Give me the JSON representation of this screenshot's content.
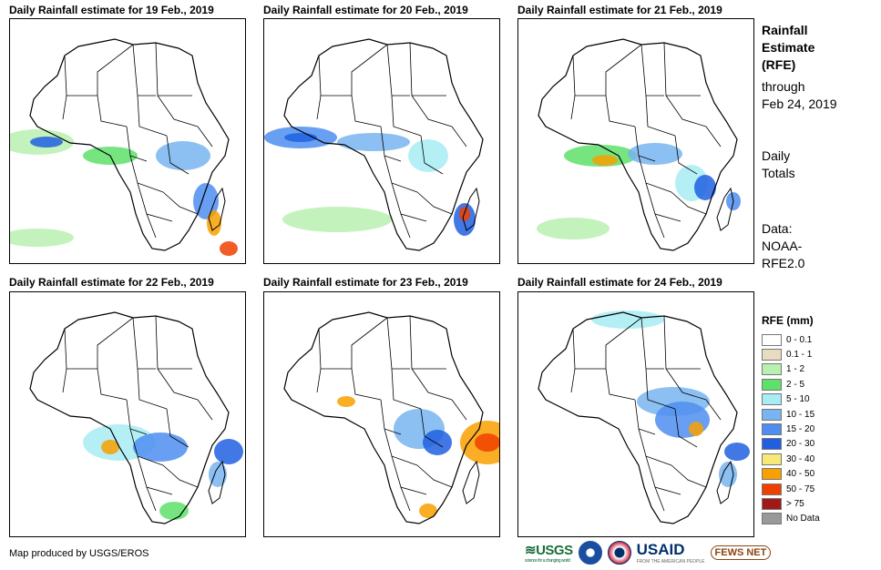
{
  "panels": [
    {
      "title": "Daily Rainfall estimate for 19 Feb., 2019"
    },
    {
      "title": "Daily Rainfall estimate for 20 Feb., 2019"
    },
    {
      "title": "Daily Rainfall estimate for 21 Feb., 2019"
    },
    {
      "title": "Daily Rainfall estimate for 22 Feb., 2019"
    },
    {
      "title": "Daily Rainfall estimate for 23 Feb., 2019"
    },
    {
      "title": "Daily Rainfall estimate for 24 Feb., 2019"
    }
  ],
  "side": {
    "title_lines": [
      "Rainfall",
      "Estimate",
      "(RFE)"
    ],
    "through": [
      "through",
      "Feb 24, 2019"
    ],
    "totals": [
      "Daily",
      "Totals"
    ],
    "data": [
      "Data:",
      "NOAA-",
      "RFE2.0"
    ]
  },
  "legend": {
    "title": "RFE (mm)",
    "items": [
      {
        "label": "0 - 0.1",
        "color": "#ffffff"
      },
      {
        "label": "0.1 - 1",
        "color": "#e8dcc0"
      },
      {
        "label": "1 - 2",
        "color": "#b8f0b0"
      },
      {
        "label": "2 - 5",
        "color": "#5ee06a"
      },
      {
        "label": "5 - 10",
        "color": "#a8ecf4"
      },
      {
        "label": "10 - 15",
        "color": "#78b4f0"
      },
      {
        "label": "15 - 20",
        "color": "#4f8ef0"
      },
      {
        "label": "20 - 30",
        "color": "#2060e0"
      },
      {
        "label": "30 - 40",
        "color": "#f8e878"
      },
      {
        "label": "40 - 50",
        "color": "#f8a000"
      },
      {
        "label": "50 - 75",
        "color": "#f04000"
      },
      {
        "label": "> 75",
        "color": "#a01818"
      },
      {
        "label": "No Data",
        "color": "#999999"
      }
    ]
  },
  "footer": {
    "credit": "Map produced by USGS/EROS",
    "logos": {
      "usgs": "USGS",
      "usgs_tagline": "science for a changing world",
      "usaid": "USAID",
      "usaid_tagline": "FROM THE AMERICAN PEOPLE",
      "fews": "FEWS NET"
    }
  },
  "colors": {
    "border": "#000000"
  }
}
